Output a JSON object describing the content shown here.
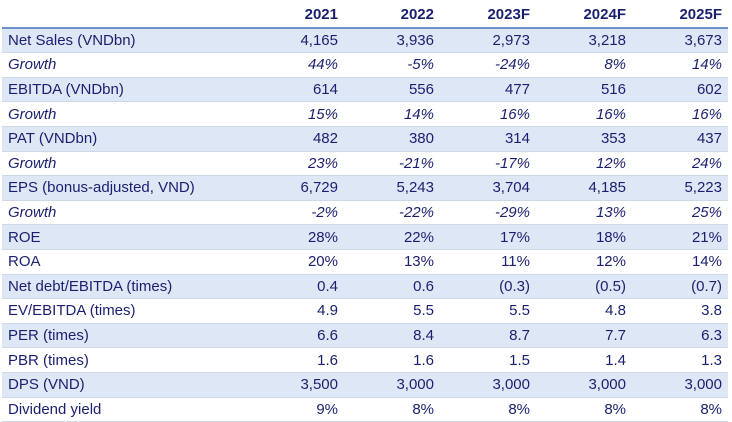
{
  "header": [
    "",
    "2021",
    "2022",
    "2023F",
    "2024F",
    "2025F"
  ],
  "rows": [
    {
      "label": "Net Sales (VNDbn)",
      "values": [
        "4,165",
        "3,936",
        "2,973",
        "3,218",
        "3,673"
      ]
    },
    {
      "label": "Growth",
      "values": [
        "44%",
        "-5%",
        "-24%",
        "8%",
        "14%"
      ]
    },
    {
      "label": "EBITDA (VNDbn)",
      "values": [
        "614",
        "556",
        "477",
        "516",
        "602"
      ]
    },
    {
      "label": "Growth",
      "values": [
        "15%",
        "14%",
        "16%",
        "16%",
        "16%"
      ]
    },
    {
      "label": "PAT (VNDbn)",
      "values": [
        "482",
        "380",
        "314",
        "353",
        "437"
      ]
    },
    {
      "label": "Growth",
      "values": [
        "23%",
        "-21%",
        "-17%",
        "12%",
        "24%"
      ]
    },
    {
      "label": "EPS (bonus-adjusted, VND)",
      "values": [
        "6,729",
        "5,243",
        "3,704",
        "4,185",
        "5,223"
      ]
    },
    {
      "label": "Growth",
      "values": [
        "-2%",
        "-22%",
        "-29%",
        "13%",
        "25%"
      ]
    },
    {
      "label": "ROE",
      "values": [
        "28%",
        "22%",
        "17%",
        "18%",
        "21%"
      ]
    },
    {
      "label": "ROA",
      "values": [
        "20%",
        "13%",
        "11%",
        "12%",
        "14%"
      ]
    },
    {
      "label": "Net debt/EBITDA (times)",
      "values": [
        "0.4",
        "0.6",
        "(0.3)",
        "(0.5)",
        "(0.7)"
      ]
    },
    {
      "label": "EV/EBITDA (times)",
      "values": [
        "4.9",
        "5.5",
        "5.5",
        "4.8",
        "3.8"
      ]
    },
    {
      "label": "PER (times)",
      "values": [
        "6.6",
        "8.4",
        "8.7",
        "7.7",
        "6.3"
      ]
    },
    {
      "label": "PBR (times)",
      "values": [
        "1.6",
        "1.6",
        "1.5",
        "1.4",
        "1.3"
      ]
    },
    {
      "label": "DPS (VND)",
      "values": [
        "3,500",
        "3,000",
        "3,000",
        "3,000",
        "3,000"
      ]
    },
    {
      "label": "Dividend yield",
      "values": [
        "9%",
        "8%",
        "8%",
        "8%",
        "8%"
      ]
    }
  ]
}
